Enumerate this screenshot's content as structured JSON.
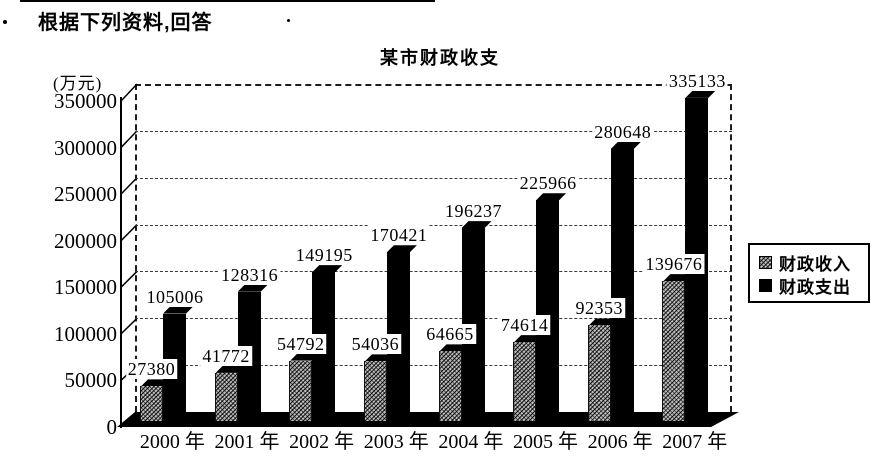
{
  "page": {
    "heading": "根据下列资料,回答"
  },
  "chart_data": {
    "type": "bar",
    "title": "某市财政收支",
    "y_axis_unit": "(万元)",
    "xlabel": "",
    "ylabel": "",
    "categories": [
      "2000 年",
      "2001 年",
      "2002 年",
      "2003 年",
      "2004 年",
      "2005 年",
      "2006 年",
      "2007 年"
    ],
    "series": [
      {
        "name": "财政收入",
        "style": "hatched",
        "values": [
          27380,
          41772,
          54792,
          54036,
          64665,
          74614,
          92353,
          139676
        ]
      },
      {
        "name": "财政支出",
        "style": "solid",
        "values": [
          105006,
          128316,
          149195,
          170421,
          196237,
          225966,
          280648,
          335133
        ]
      }
    ],
    "ylim": [
      0,
      350000
    ],
    "y_ticks": [
      0,
      50000,
      100000,
      150000,
      200000,
      250000,
      300000,
      350000
    ],
    "grid": "dashed-horizontal",
    "legend_position": "right",
    "effect": "3d",
    "value_labels": "above-bars"
  },
  "colors": {
    "bar_expenditure": "#000000",
    "bar_revenue_base": "#bdbdbd",
    "text": "#000000",
    "background": "#ffffff"
  }
}
